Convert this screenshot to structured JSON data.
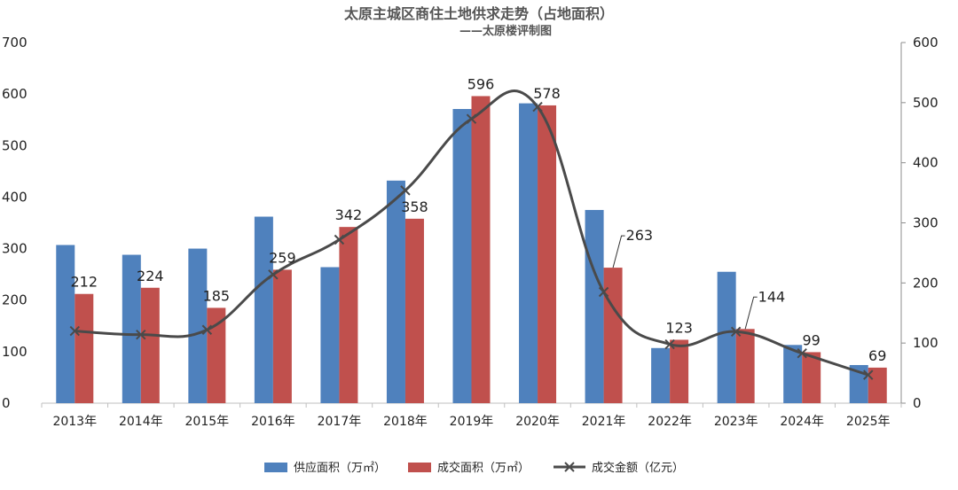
{
  "chart_data": {
    "type": "bar",
    "title": "太原主城区商住土地供求走势（占地面积）",
    "subtitle": "——太原楼评制图",
    "categories": [
      "2013年",
      "2014年",
      "2015年",
      "2016年",
      "2017年",
      "2018年",
      "2019年",
      "2020年",
      "2021年",
      "2022年",
      "2023年",
      "2024年",
      "2025年"
    ],
    "series": [
      {
        "name": "供应面积（万㎡）",
        "type": "bar",
        "color": "#4f81bd",
        "axis": "left",
        "values": [
          307,
          288,
          300,
          362,
          264,
          432,
          571,
          582,
          375,
          107,
          255,
          113,
          74
        ]
      },
      {
        "name": "成交面积（万㎡）",
        "type": "bar",
        "color": "#c0504d",
        "axis": "left",
        "values": [
          212,
          224,
          185,
          259,
          342,
          358,
          596,
          578,
          263,
          123,
          144,
          99,
          69
        ],
        "data_labels": [
          "212",
          "224",
          "185",
          "259",
          "342",
          "358",
          "596",
          "578",
          "263",
          "123",
          "144",
          "99",
          "69"
        ]
      },
      {
        "name": "成交金额（亿元）",
        "type": "line",
        "color": "#4a4a4a",
        "marker": "x",
        "axis": "right",
        "values": [
          120,
          114,
          122,
          214,
          272,
          354,
          473,
          493,
          185,
          98,
          119,
          83,
          47
        ]
      }
    ],
    "y_left": {
      "min": 0,
      "max": 700,
      "ticks": [
        "0",
        "100",
        "200",
        "300",
        "400",
        "500",
        "600",
        "700"
      ]
    },
    "y_right": {
      "min": 0,
      "max": 600,
      "ticks": [
        "0",
        "100",
        "200",
        "300",
        "400",
        "500",
        "600"
      ]
    },
    "grid": false,
    "legend_position": "bottom"
  }
}
